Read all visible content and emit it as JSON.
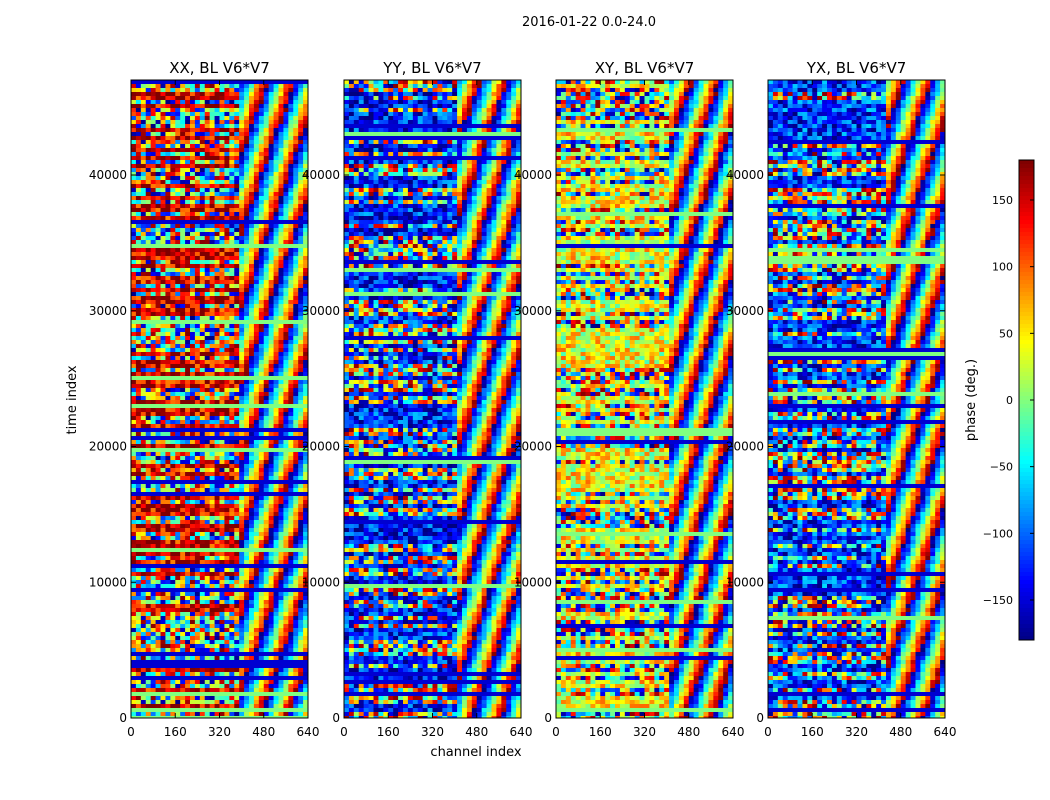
{
  "chart_data": {
    "type": "heatmap",
    "suptitle": "2016-01-22 0.0-24.0",
    "xlabel": "channel index",
    "ylabel": "time index",
    "xlim": [
      0,
      640
    ],
    "ylim": [
      0,
      47000
    ],
    "xticks": [
      0,
      160,
      320,
      480,
      640
    ],
    "xtick_labels": [
      "0",
      "160",
      "320",
      "480",
      "640"
    ],
    "yticks": [
      0,
      10000,
      20000,
      30000,
      40000
    ],
    "ytick_labels": [
      "0",
      "10000",
      "20000",
      "30000",
      "40000"
    ],
    "colormap": "jet",
    "colorbar": {
      "label": "phase (deg.)",
      "range": [
        -180,
        180
      ],
      "ticks": [
        150,
        100,
        50,
        0,
        -50,
        -100,
        -150
      ],
      "tick_labels": [
        "150",
        "100",
        "50",
        "0",
        "−50",
        "−100",
        "−150"
      ]
    },
    "panels": [
      {
        "title": "XX, BL V6*V7",
        "dominant_phase": 150,
        "split_channel": 390
      },
      {
        "title": "YY, BL V6*V7",
        "dominant_phase": -130,
        "split_channel": 400
      },
      {
        "title": "XY, BL V6*V7",
        "dominant_phase": 40,
        "split_channel": 400
      },
      {
        "title": "YX, BL V6*V7",
        "dominant_phase": -120,
        "split_channel": 420
      }
    ]
  }
}
